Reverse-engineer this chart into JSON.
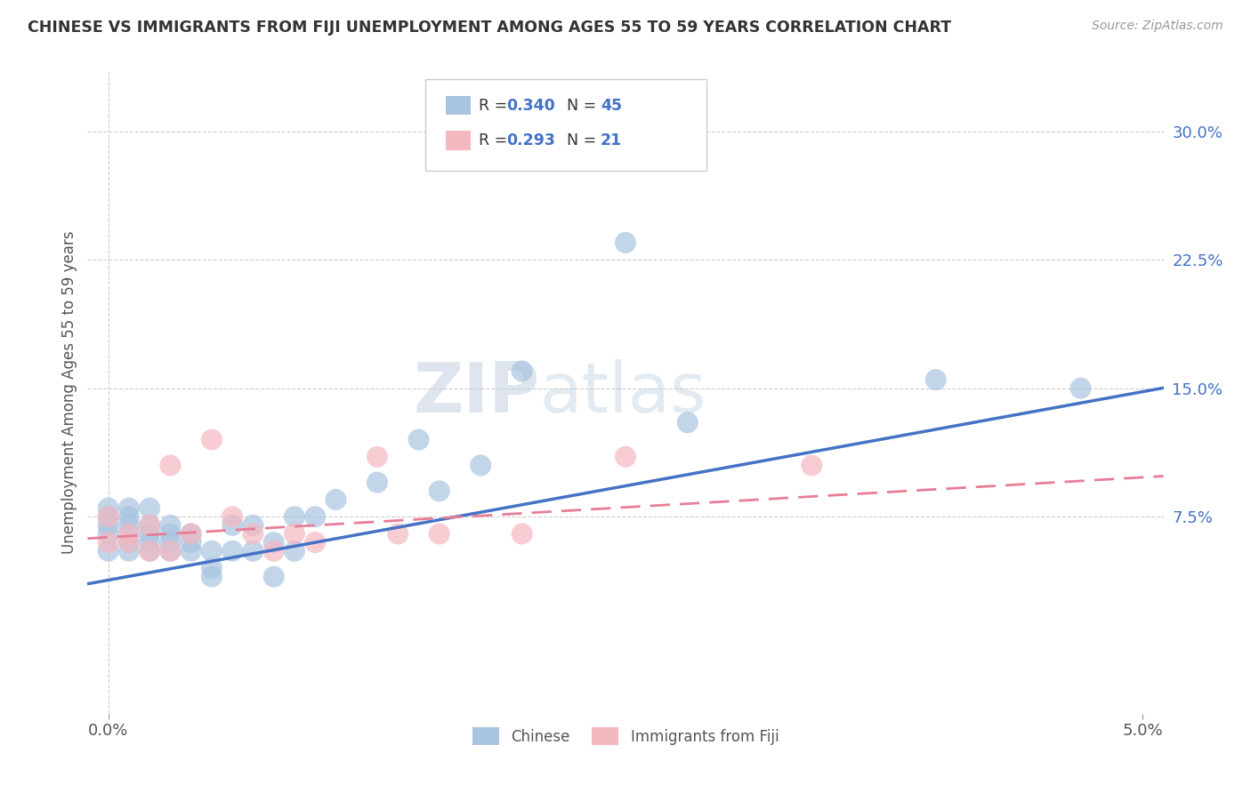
{
  "title": "CHINESE VS IMMIGRANTS FROM FIJI UNEMPLOYMENT AMONG AGES 55 TO 59 YEARS CORRELATION CHART",
  "source": "Source: ZipAtlas.com",
  "ylabel": "Unemployment Among Ages 55 to 59 years",
  "xlim": [
    -0.001,
    0.051
  ],
  "ylim": [
    -0.04,
    0.335
  ],
  "xtick_vals": [
    0.0,
    0.05
  ],
  "xtick_labels": [
    "0.0%",
    "5.0%"
  ],
  "ytick_values": [
    0.075,
    0.15,
    0.225,
    0.3
  ],
  "ytick_labels": [
    "7.5%",
    "15.0%",
    "22.5%",
    "30.0%"
  ],
  "legend_labels": [
    "Chinese",
    "Immigrants from Fiji"
  ],
  "chinese_R": "0.340",
  "chinese_N": "45",
  "fiji_R": "0.293",
  "fiji_N": "21",
  "chinese_color": "#a8c4e0",
  "fiji_color": "#f4b8c1",
  "chinese_line_color": "#4472c4",
  "fiji_line_color": "#e87d96",
  "text_color": "#4472c4",
  "background_color": "#ffffff",
  "chinese_x": [
    0.0,
    0.0,
    0.0,
    0.0,
    0.0,
    0.001,
    0.001,
    0.001,
    0.001,
    0.001,
    0.001,
    0.002,
    0.002,
    0.002,
    0.002,
    0.002,
    0.003,
    0.003,
    0.003,
    0.003,
    0.004,
    0.004,
    0.004,
    0.005,
    0.005,
    0.005,
    0.006,
    0.006,
    0.007,
    0.007,
    0.008,
    0.008,
    0.009,
    0.009,
    0.01,
    0.011,
    0.013,
    0.015,
    0.016,
    0.018,
    0.02,
    0.025,
    0.028,
    0.04,
    0.047
  ],
  "chinese_y": [
    0.055,
    0.065,
    0.07,
    0.075,
    0.08,
    0.055,
    0.06,
    0.065,
    0.07,
    0.075,
    0.08,
    0.055,
    0.06,
    0.065,
    0.07,
    0.08,
    0.055,
    0.06,
    0.065,
    0.07,
    0.055,
    0.06,
    0.065,
    0.04,
    0.045,
    0.055,
    0.055,
    0.07,
    0.055,
    0.07,
    0.04,
    0.06,
    0.055,
    0.075,
    0.075,
    0.085,
    0.095,
    0.12,
    0.09,
    0.105,
    0.16,
    0.235,
    0.13,
    0.155,
    0.15
  ],
  "fiji_x": [
    0.0,
    0.0,
    0.001,
    0.001,
    0.002,
    0.002,
    0.003,
    0.003,
    0.004,
    0.005,
    0.006,
    0.007,
    0.008,
    0.009,
    0.01,
    0.013,
    0.014,
    0.016,
    0.02,
    0.025,
    0.034
  ],
  "fiji_y": [
    0.06,
    0.075,
    0.06,
    0.065,
    0.055,
    0.07,
    0.055,
    0.105,
    0.065,
    0.12,
    0.075,
    0.065,
    0.055,
    0.065,
    0.06,
    0.11,
    0.065,
    0.065,
    0.065,
    0.11,
    0.105
  ]
}
